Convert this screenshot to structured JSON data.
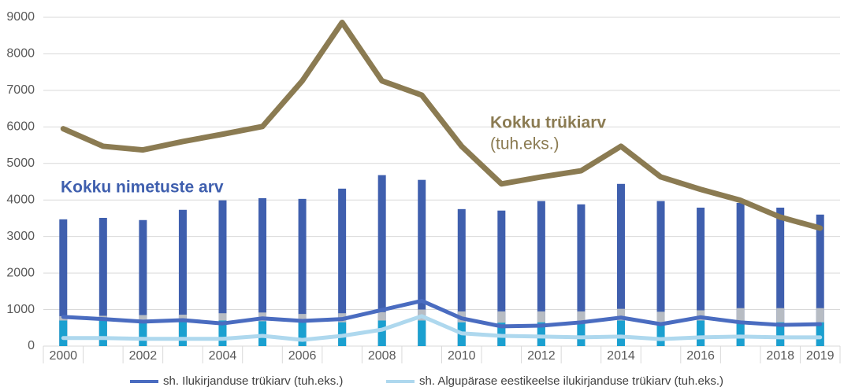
{
  "chart_data": {
    "type": "bar_line",
    "categories": [
      "2000",
      null,
      "2002",
      null,
      "2004",
      null,
      "2006",
      null,
      "2008",
      null,
      "2010",
      null,
      "2012",
      null,
      "2014",
      null,
      "2016",
      null,
      "2018",
      "2019"
    ],
    "ylim": [
      0,
      9000
    ],
    "yticks": [
      0,
      1000,
      2000,
      3000,
      4000,
      5000,
      6000,
      7000,
      8000,
      9000
    ],
    "grid": true,
    "bars": [
      {
        "color": "#3f5fae",
        "values": [
          3470,
          3510,
          3450,
          3730,
          3990,
          4050,
          4030,
          4310,
          4680,
          4550,
          3750,
          3710,
          3970,
          3880,
          4440,
          3970,
          3790,
          3920,
          3790,
          3600
        ]
      },
      {
        "color": "#b7bcc3",
        "values": [
          820,
          830,
          850,
          860,
          900,
          920,
          880,
          900,
          930,
          1000,
          950,
          950,
          950,
          950,
          1020,
          940,
          980,
          1040,
          1040,
          1040
        ]
      },
      {
        "color": "#1aa0d0",
        "values": [
          700,
          700,
          680,
          700,
          700,
          680,
          650,
          650,
          700,
          700,
          650,
          640,
          650,
          650,
          700,
          650,
          700,
          650,
          650,
          650
        ]
      }
    ],
    "lines": [
      {
        "color": "#8b7b52",
        "width": 7,
        "values": [
          5950,
          5470,
          5370,
          5600,
          5800,
          6010,
          7260,
          8860,
          7260,
          6870,
          5470,
          4440,
          4630,
          4800,
          5470,
          4630,
          4290,
          3990,
          3530,
          3230
        ]
      }
    ],
    "series": [
      {
        "name": "sh. Ilukirjanduse trükiarv (tuh.eks.)",
        "color": "#4a6cc0",
        "values": [
          800,
          740,
          670,
          710,
          620,
          760,
          690,
          740,
          990,
          1240,
          760,
          540,
          560,
          650,
          780,
          600,
          790,
          650,
          580,
          600
        ]
      },
      {
        "name": "sh. Algupärase eestikeelse ilukirjanduse trükiarv (tuh.eks.)",
        "color": "#aed8ee",
        "values": [
          220,
          220,
          200,
          200,
          200,
          280,
          170,
          280,
          450,
          820,
          350,
          280,
          260,
          240,
          260,
          190,
          240,
          260,
          240,
          240
        ]
      }
    ],
    "annotations": [
      {
        "text": "Kokku trükiarv",
        "color": "#8b7b52"
      },
      {
        "text": "(tuh.eks.)",
        "color": "#8b7b52"
      },
      {
        "text": "Kokku nimetuste arv",
        "color": "#3f5fae"
      }
    ]
  }
}
